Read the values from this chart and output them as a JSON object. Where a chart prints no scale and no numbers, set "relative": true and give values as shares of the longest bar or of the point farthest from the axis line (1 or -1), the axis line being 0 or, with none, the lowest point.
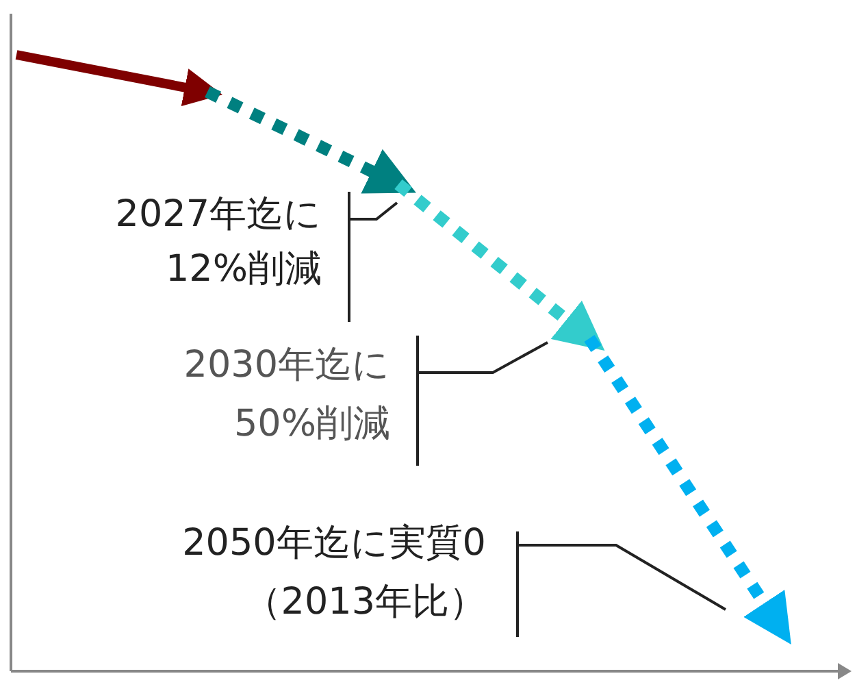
{
  "chart_data": {
    "type": "line",
    "relative": true,
    "categories": [
      null,
      null,
      null,
      null,
      null
    ],
    "series": [
      {
        "color": "#7f0000",
        "line_style": "solid",
        "values": [
          1,
          0.94,
          null,
          null,
          null
        ]
      },
      {
        "color": "#008080",
        "line_style": "dotted",
        "values": [
          null,
          0.94,
          0.79,
          null,
          null
        ]
      },
      {
        "color": "#33cccc",
        "line_style": "dotted",
        "values": [
          null,
          null,
          0.79,
          0.54,
          null
        ]
      },
      {
        "color": "#00b0f0",
        "line_style": "dotted",
        "values": [
          null,
          null,
          null,
          0.54,
          0.07
        ]
      }
    ],
    "marker": "none",
    "grid": false,
    "annotations": [
      "2027年迄に\n12%削減",
      "2030年迄に\n50%削減",
      "2050年迄に実質0\n（2013年比）"
    ]
  }
}
